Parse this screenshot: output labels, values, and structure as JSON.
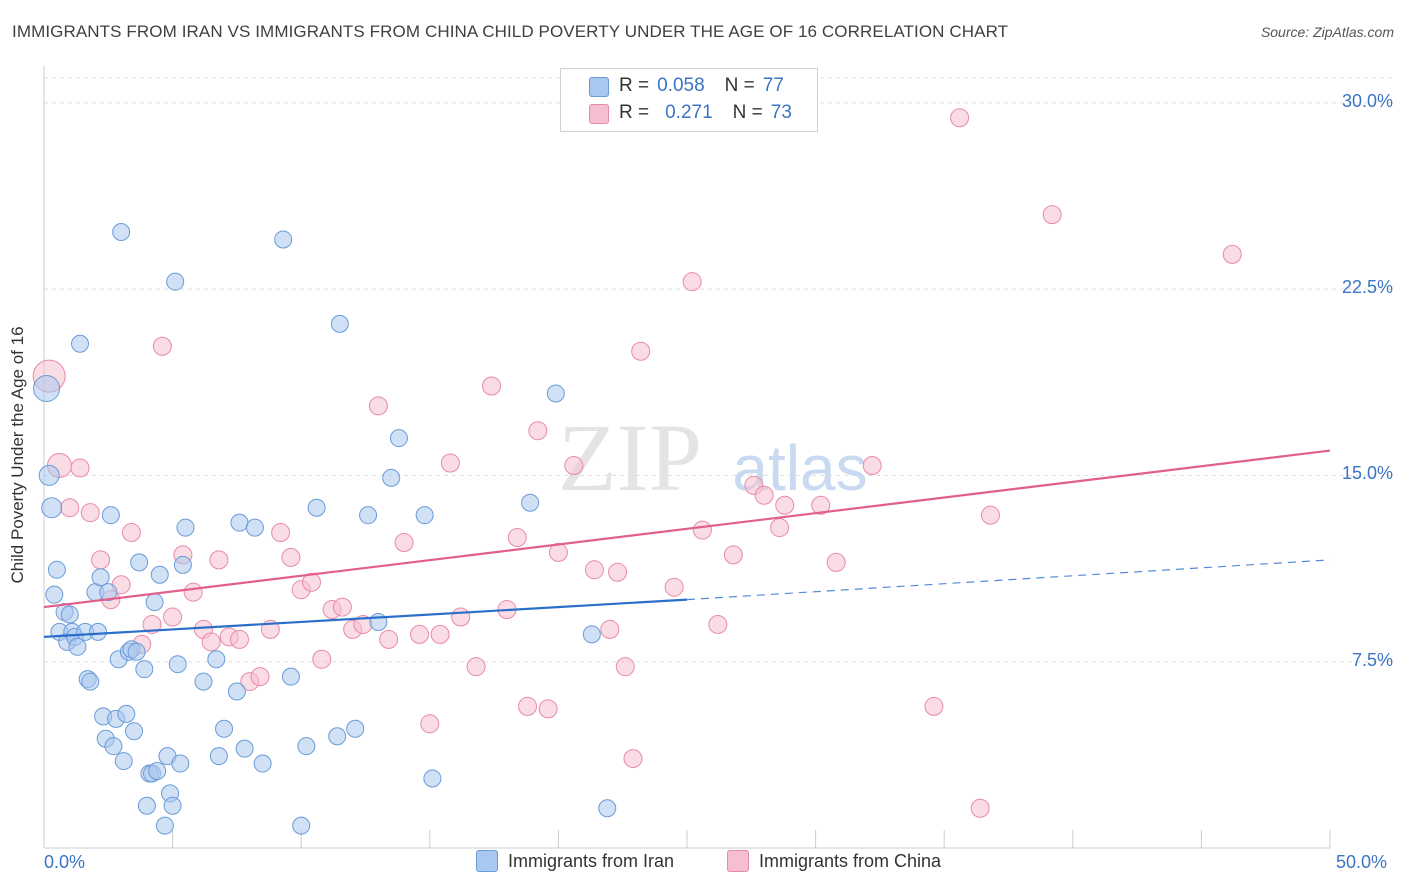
{
  "title": "IMMIGRANTS FROM IRAN VS IMMIGRANTS FROM CHINA CHILD POVERTY UNDER THE AGE OF 16 CORRELATION CHART",
  "source": "Source: ZipAtlas.com",
  "legend": {
    "r_label": "R =",
    "n_label": "N =",
    "iran_r": "0.058",
    "iran_n": "77",
    "china_r": "0.271",
    "china_n": "73"
  },
  "bottom_legend": {
    "iran": "Immigrants from Iran",
    "china": "Immigrants from China"
  },
  "watermark": {
    "zip": "ZIP",
    "atlas": "atlas"
  },
  "colors": {
    "iran_fill": "#a9c8ef",
    "iran_stroke": "#6a9bd8",
    "iran_line": "#2b6fcb",
    "china_fill": "#f6bfd0",
    "china_stroke": "#e88aa8",
    "china_line": "#e0608a",
    "tick_text": "#3a74c4",
    "grid": "#dddddd"
  },
  "chart_data": {
    "type": "scatter",
    "xlabel": "",
    "ylabel": "Child Poverty Under the Age of 16",
    "xlim": [
      0,
      50
    ],
    "ylim": [
      0,
      31
    ],
    "x_tick_labels": [
      "0.0%",
      "50.0%"
    ],
    "y_ticks": [
      7.5,
      15.0,
      22.5,
      30.0
    ],
    "y_tick_labels": [
      "7.5%",
      "15.0%",
      "22.5%",
      "30.0%"
    ],
    "grid": "horizontal dashed",
    "legend_position": "top-center",
    "series": [
      {
        "name": "Immigrants from Iran",
        "color": "#a9c8ef",
        "R": 0.058,
        "N": 77,
        "trend": {
          "x": [
            0,
            25
          ],
          "y": [
            8.5,
            10.0
          ],
          "dashed_extension_to_x": 50,
          "dashed_end_y": 11.6
        },
        "points": [
          [
            0.1,
            18.5
          ],
          [
            0.2,
            15.0
          ],
          [
            0.3,
            13.7
          ],
          [
            0.5,
            11.2
          ],
          [
            0.4,
            10.2
          ],
          [
            0.6,
            8.7
          ],
          [
            0.8,
            9.5
          ],
          [
            0.9,
            8.3
          ],
          [
            1.0,
            9.4
          ],
          [
            1.1,
            8.7
          ],
          [
            1.2,
            8.5
          ],
          [
            1.3,
            8.1
          ],
          [
            1.4,
            20.3
          ],
          [
            1.6,
            8.7
          ],
          [
            1.7,
            6.8
          ],
          [
            1.8,
            6.7
          ],
          [
            2.0,
            10.3
          ],
          [
            2.1,
            8.7
          ],
          [
            2.2,
            10.9
          ],
          [
            2.3,
            5.3
          ],
          [
            2.4,
            4.4
          ],
          [
            2.5,
            10.3
          ],
          [
            2.6,
            13.4
          ],
          [
            2.7,
            4.1
          ],
          [
            2.8,
            5.2
          ],
          [
            2.9,
            7.6
          ],
          [
            3.0,
            24.8
          ],
          [
            3.1,
            3.5
          ],
          [
            3.2,
            5.4
          ],
          [
            3.3,
            7.9
          ],
          [
            3.4,
            8.0
          ],
          [
            3.5,
            4.7
          ],
          [
            3.6,
            7.9
          ],
          [
            3.7,
            11.5
          ],
          [
            3.9,
            7.2
          ],
          [
            4.0,
            1.7
          ],
          [
            4.1,
            3.0
          ],
          [
            4.2,
            3.0
          ],
          [
            4.3,
            9.9
          ],
          [
            4.4,
            3.1
          ],
          [
            4.5,
            11.0
          ],
          [
            4.7,
            0.9
          ],
          [
            4.8,
            3.7
          ],
          [
            4.9,
            2.2
          ],
          [
            5.0,
            1.7
          ],
          [
            5.1,
            22.8
          ],
          [
            5.2,
            7.4
          ],
          [
            5.3,
            3.4
          ],
          [
            5.4,
            11.4
          ],
          [
            5.5,
            12.9
          ],
          [
            6.2,
            6.7
          ],
          [
            6.7,
            7.6
          ],
          [
            6.8,
            3.7
          ],
          [
            7.0,
            4.8
          ],
          [
            7.5,
            6.3
          ],
          [
            7.6,
            13.1
          ],
          [
            7.8,
            4.0
          ],
          [
            8.2,
            12.9
          ],
          [
            8.5,
            3.4
          ],
          [
            9.3,
            24.5
          ],
          [
            9.6,
            6.9
          ],
          [
            10.0,
            0.9
          ],
          [
            10.2,
            4.1
          ],
          [
            10.6,
            13.7
          ],
          [
            11.4,
            4.5
          ],
          [
            11.5,
            21.1
          ],
          [
            12.1,
            4.8
          ],
          [
            12.6,
            13.4
          ],
          [
            13.0,
            9.1
          ],
          [
            13.5,
            14.9
          ],
          [
            13.8,
            16.5
          ],
          [
            14.8,
            13.4
          ],
          [
            15.1,
            2.8
          ],
          [
            18.9,
            13.9
          ],
          [
            19.9,
            18.3
          ],
          [
            21.3,
            8.6
          ],
          [
            21.9,
            1.6
          ]
        ]
      },
      {
        "name": "Immigrants from China",
        "color": "#f6bfd0",
        "R": 0.271,
        "N": 73,
        "trend": {
          "x": [
            0,
            50
          ],
          "y": [
            9.7,
            16.0
          ]
        },
        "points": [
          [
            0.2,
            19.0
          ],
          [
            0.6,
            15.4
          ],
          [
            1.0,
            13.7
          ],
          [
            1.4,
            15.3
          ],
          [
            1.8,
            13.5
          ],
          [
            2.2,
            11.6
          ],
          [
            2.6,
            10.0
          ],
          [
            3.0,
            10.6
          ],
          [
            3.4,
            12.7
          ],
          [
            3.8,
            8.2
          ],
          [
            4.2,
            9.0
          ],
          [
            4.6,
            20.2
          ],
          [
            5.0,
            9.3
          ],
          [
            5.4,
            11.8
          ],
          [
            5.8,
            10.3
          ],
          [
            6.2,
            8.8
          ],
          [
            6.5,
            8.3
          ],
          [
            6.8,
            11.6
          ],
          [
            7.2,
            8.5
          ],
          [
            7.6,
            8.4
          ],
          [
            8.0,
            6.7
          ],
          [
            8.4,
            6.9
          ],
          [
            8.8,
            8.8
          ],
          [
            9.2,
            12.7
          ],
          [
            9.6,
            11.7
          ],
          [
            10.0,
            10.4
          ],
          [
            10.4,
            10.7
          ],
          [
            10.8,
            7.6
          ],
          [
            11.2,
            9.6
          ],
          [
            11.6,
            9.7
          ],
          [
            12.0,
            8.8
          ],
          [
            12.4,
            9.0
          ],
          [
            13.0,
            17.8
          ],
          [
            13.4,
            8.4
          ],
          [
            14.0,
            12.3
          ],
          [
            14.6,
            8.6
          ],
          [
            15.0,
            5.0
          ],
          [
            15.4,
            8.6
          ],
          [
            15.8,
            15.5
          ],
          [
            16.2,
            9.3
          ],
          [
            16.8,
            7.3
          ],
          [
            17.4,
            18.6
          ],
          [
            18.0,
            9.6
          ],
          [
            18.4,
            12.5
          ],
          [
            18.8,
            5.7
          ],
          [
            19.2,
            16.8
          ],
          [
            19.6,
            5.6
          ],
          [
            20.0,
            11.9
          ],
          [
            20.6,
            15.4
          ],
          [
            21.4,
            11.2
          ],
          [
            22.0,
            8.8
          ],
          [
            22.3,
            11.1
          ],
          [
            22.6,
            7.3
          ],
          [
            22.9,
            3.6
          ],
          [
            23.2,
            20.0
          ],
          [
            25.2,
            22.8
          ],
          [
            25.6,
            12.8
          ],
          [
            26.2,
            9.0
          ],
          [
            26.8,
            11.8
          ],
          [
            27.6,
            14.6
          ],
          [
            28.0,
            14.2
          ],
          [
            28.6,
            12.9
          ],
          [
            28.8,
            13.8
          ],
          [
            30.2,
            13.8
          ],
          [
            30.8,
            11.5
          ],
          [
            32.2,
            15.4
          ],
          [
            34.6,
            5.7
          ],
          [
            35.6,
            29.4
          ],
          [
            36.4,
            1.6
          ],
          [
            36.8,
            13.4
          ],
          [
            39.2,
            25.5
          ],
          [
            46.2,
            23.9
          ],
          [
            24.5,
            10.5
          ]
        ]
      }
    ]
  }
}
